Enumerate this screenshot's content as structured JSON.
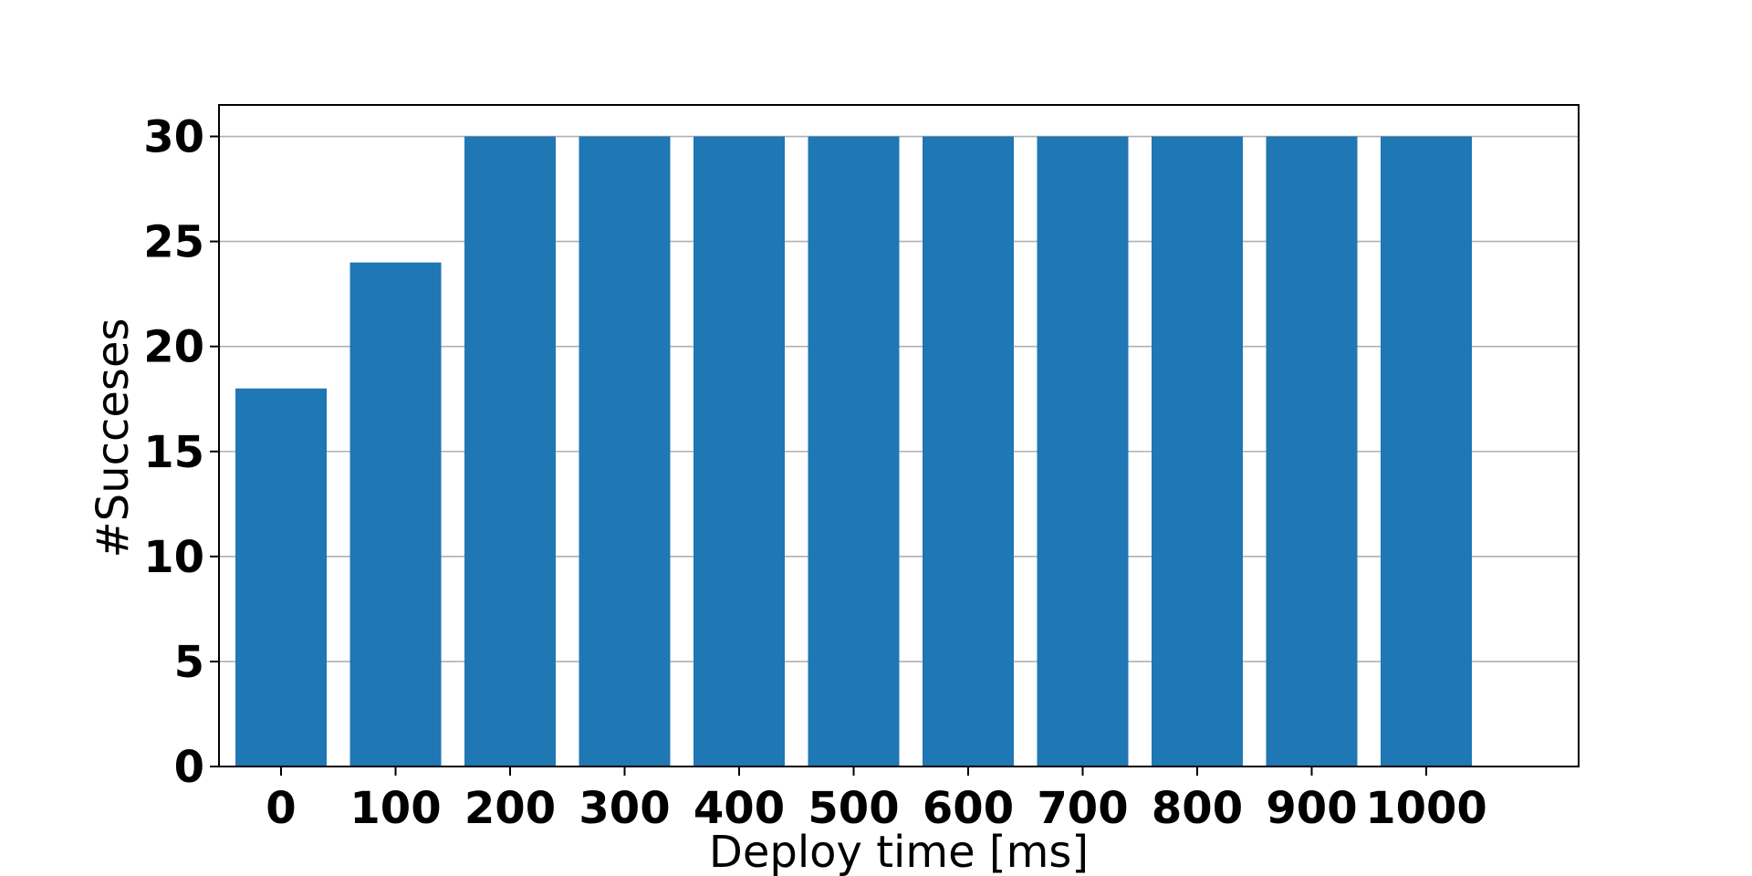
{
  "chart_data": {
    "type": "bar",
    "categories": [
      "0",
      "100",
      "200",
      "300",
      "400",
      "500",
      "600",
      "700",
      "800",
      "900",
      "1000"
    ],
    "values": [
      18,
      24,
      30,
      30,
      30,
      30,
      30,
      30,
      30,
      30,
      30
    ],
    "xlabel": "Deploy time [ms]",
    "ylabel": "#Succeses",
    "ylim": [
      0,
      31.5
    ],
    "yticks": [
      0,
      5,
      10,
      15,
      20,
      25,
      30
    ],
    "grid": "y",
    "bar_color": "#1f77b4"
  }
}
